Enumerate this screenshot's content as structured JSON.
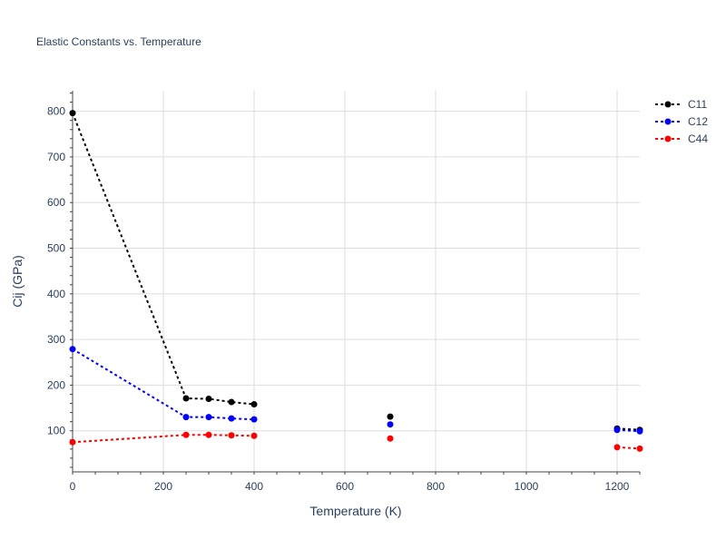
{
  "chart_data": {
    "type": "line",
    "title": "Elastic Constants vs. Temperature",
    "xlabel": "Temperature (K)",
    "ylabel": "Cij (GPa)",
    "xlim": [
      0,
      1250
    ],
    "ylim": [
      10,
      845
    ],
    "grid": true,
    "legend_position": "top-right",
    "x_ticks": [
      0,
      200,
      400,
      600,
      800,
      1000,
      1200
    ],
    "y_ticks": [
      100,
      200,
      300,
      400,
      500,
      600,
      700,
      800
    ],
    "series": [
      {
        "name": "C11",
        "color": "#000000",
        "points": [
          {
            "x": 0,
            "y": 796
          },
          {
            "x": 250,
            "y": 171,
            "connect": true
          },
          {
            "x": 300,
            "y": 170,
            "connect": true
          },
          {
            "x": 350,
            "y": 163,
            "connect": true
          },
          {
            "x": 400,
            "y": 158,
            "connect": true
          },
          {
            "x": 700,
            "y": 131
          },
          {
            "x": 1200,
            "y": 105
          },
          {
            "x": 1250,
            "y": 102,
            "connect": true
          }
        ]
      },
      {
        "name": "C12",
        "color": "#0000ff",
        "points": [
          {
            "x": 0,
            "y": 279
          },
          {
            "x": 250,
            "y": 130,
            "connect": true
          },
          {
            "x": 300,
            "y": 130,
            "connect": true
          },
          {
            "x": 350,
            "y": 127,
            "connect": true
          },
          {
            "x": 400,
            "y": 125,
            "connect": true
          },
          {
            "x": 700,
            "y": 114
          },
          {
            "x": 1200,
            "y": 102
          },
          {
            "x": 1250,
            "y": 99,
            "connect": true
          }
        ]
      },
      {
        "name": "C44",
        "color": "#ff0000",
        "points": [
          {
            "x": 0,
            "y": 75
          },
          {
            "x": 250,
            "y": 91,
            "connect": true
          },
          {
            "x": 300,
            "y": 91,
            "connect": true
          },
          {
            "x": 350,
            "y": 90,
            "connect": true
          },
          {
            "x": 400,
            "y": 89,
            "connect": true
          },
          {
            "x": 700,
            "y": 83
          },
          {
            "x": 1200,
            "y": 64
          },
          {
            "x": 1250,
            "y": 61,
            "connect": true
          }
        ]
      }
    ]
  }
}
